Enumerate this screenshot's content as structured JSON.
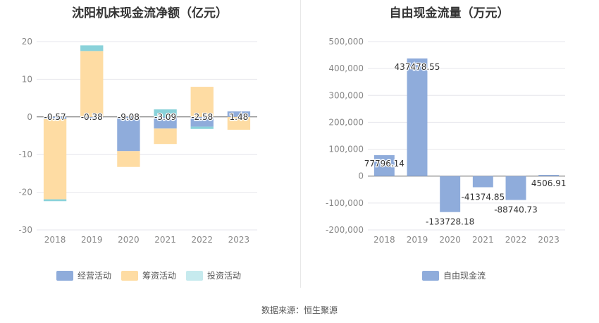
{
  "chart_data": [
    {
      "type": "bar",
      "stacked": true,
      "title": "沈阳机床现金流净额（亿元）",
      "categories": [
        "2018",
        "2019",
        "2020",
        "2021",
        "2022",
        "2023"
      ],
      "ylim": [
        -30,
        20
      ],
      "yticks": [
        20,
        10,
        0,
        -10,
        -20,
        -30
      ],
      "legend_position": "bottom",
      "grid": true,
      "series": [
        {
          "name": "经营活动",
          "color": "#8facdb",
          "values": [
            -0.57,
            -0.38,
            -9.08,
            -3.09,
            -2.58,
            1.48
          ]
        },
        {
          "name": "筹资活动",
          "color": "#fedca3",
          "values": [
            -21.3,
            17.5,
            -4.2,
            -4.1,
            8.0,
            -3.4
          ]
        },
        {
          "name": "投资活动",
          "color": "#8ad2da",
          "values": [
            -0.5,
            1.5,
            0.0,
            2.0,
            -0.6,
            0.0
          ]
        }
      ],
      "data_labels": [
        "-0.57",
        "-0.38",
        "-9.08",
        "-3.09",
        "-2.58",
        "1.48"
      ]
    },
    {
      "type": "bar",
      "title": "自由现金流量（万元）",
      "categories": [
        "2018",
        "2019",
        "2020",
        "2021",
        "2022",
        "2023"
      ],
      "ylim": [
        -200000,
        500000
      ],
      "yticks": [
        500000,
        400000,
        300000,
        200000,
        100000,
        0,
        -100000,
        -200000
      ],
      "ytick_labels": [
        "500,000",
        "400,000",
        "300,000",
        "200,000",
        "100,000",
        "0",
        "-100,000",
        "-200,000"
      ],
      "legend_position": "bottom",
      "grid": true,
      "series": [
        {
          "name": "自由现金流",
          "color": "#8facdb",
          "values": [
            77796.14,
            437478.55,
            -133728.18,
            -41374.85,
            -88740.73,
            4506.91
          ]
        }
      ],
      "data_labels": [
        "77796.14",
        "437478.55",
        "-133728.18",
        "-41374.85",
        "-88740.73",
        "4506.91"
      ]
    }
  ],
  "source": "数据来源：恒生聚源"
}
